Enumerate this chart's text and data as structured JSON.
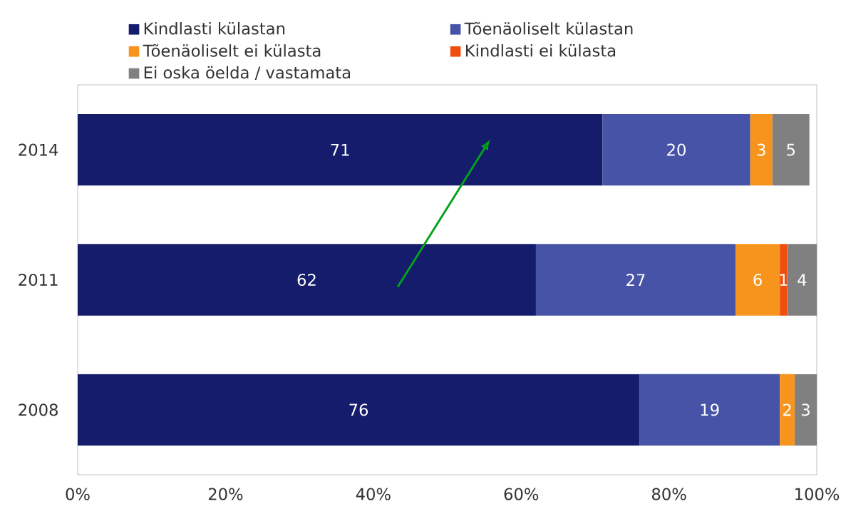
{
  "chart_data": {
    "type": "bar",
    "orientation": "horizontal",
    "stacked": true,
    "categories": [
      "2014",
      "2011",
      "2008"
    ],
    "series": [
      {
        "name": "Kindlasti külastan",
        "color": "#141c6b",
        "values": [
          71,
          62,
          76
        ]
      },
      {
        "name": "Tõenäoliselt külastan",
        "color": "#4753a6",
        "values": [
          20,
          27,
          19
        ]
      },
      {
        "name": "Tõenäoliselt ei külasta",
        "color": "#f7941d",
        "values": [
          3,
          6,
          2
        ]
      },
      {
        "name": "Kindlasti ei külasta",
        "color": "#f04e0e",
        "values": [
          null,
          1,
          null
        ]
      },
      {
        "name": "Ei oska öelda / vastamata",
        "color": "#808080",
        "values": [
          5,
          4,
          3
        ]
      }
    ],
    "xlim": [
      0,
      100
    ],
    "xticks": [
      {
        "value": 0,
        "label": "0%"
      },
      {
        "value": 20,
        "label": "20%"
      },
      {
        "value": 40,
        "label": "40%"
      },
      {
        "value": 60,
        "label": "60%"
      },
      {
        "value": 80,
        "label": "80%"
      },
      {
        "value": 100,
        "label": "100%"
      }
    ],
    "data_labels": true,
    "grid": false,
    "legend": "top"
  }
}
